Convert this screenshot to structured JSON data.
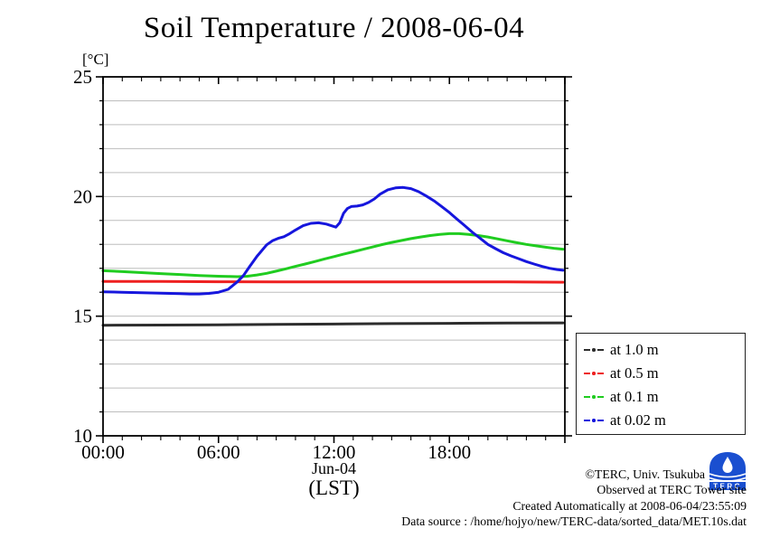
{
  "title": "Soil Temperature / 2008-06-04",
  "y_unit_label": "[°C]",
  "x_sublabels": {
    "date": "Jun-04",
    "tz": "(LST)"
  },
  "chart_data": {
    "type": "line",
    "title": "Soil Temperature / 2008-06-04",
    "xlabel": "Jun-04 (LST)",
    "ylabel": "[°C]",
    "xlim": [
      0,
      24
    ],
    "ylim": [
      10,
      25
    ],
    "grid": "horizontal, 1 degree spacing, light gray",
    "legend_position": "outside lower right",
    "x_ticks": [
      {
        "h": 0,
        "label": "00:00"
      },
      {
        "h": 6,
        "label": "06:00"
      },
      {
        "h": 12,
        "label": "12:00"
      },
      {
        "h": 18,
        "label": "18:00"
      },
      {
        "h": 24,
        "label": ""
      }
    ],
    "x_minor_step_hours": 1,
    "y_ticks": [
      {
        "v": 25,
        "label": "25"
      },
      {
        "v": 20,
        "label": "20"
      },
      {
        "v": 15,
        "label": "15"
      },
      {
        "v": 10,
        "label": "10"
      }
    ],
    "y_minor_step": 1,
    "series": [
      {
        "name": "at 1.0 m",
        "color": "#2d2d2d",
        "points": [
          [
            0,
            14.62
          ],
          [
            3,
            14.63
          ],
          [
            6,
            14.64
          ],
          [
            9,
            14.66
          ],
          [
            12,
            14.67
          ],
          [
            15,
            14.69
          ],
          [
            18,
            14.7
          ],
          [
            21,
            14.71
          ],
          [
            23.9,
            14.72
          ]
        ]
      },
      {
        "name": "at 0.5 m",
        "color": "#ee2020",
        "points": [
          [
            0,
            16.45
          ],
          [
            3,
            16.45
          ],
          [
            6,
            16.44
          ],
          [
            9,
            16.43
          ],
          [
            12,
            16.43
          ],
          [
            15,
            16.43
          ],
          [
            18,
            16.43
          ],
          [
            21,
            16.43
          ],
          [
            23.9,
            16.42
          ]
        ]
      },
      {
        "name": "at 0.1 m",
        "color": "#20cc20",
        "points": [
          [
            0,
            16.9
          ],
          [
            1,
            16.86
          ],
          [
            2,
            16.82
          ],
          [
            3,
            16.78
          ],
          [
            4,
            16.74
          ],
          [
            5,
            16.7
          ],
          [
            6,
            16.67
          ],
          [
            6.5,
            16.66
          ],
          [
            7,
            16.65
          ],
          [
            7.5,
            16.67
          ],
          [
            8,
            16.72
          ],
          [
            8.5,
            16.79
          ],
          [
            9,
            16.88
          ],
          [
            9.5,
            16.98
          ],
          [
            10,
            17.08
          ],
          [
            10.5,
            17.18
          ],
          [
            11,
            17.28
          ],
          [
            11.5,
            17.39
          ],
          [
            12,
            17.49
          ],
          [
            12.5,
            17.59
          ],
          [
            13,
            17.69
          ],
          [
            13.5,
            17.79
          ],
          [
            14,
            17.89
          ],
          [
            14.5,
            17.99
          ],
          [
            15,
            18.08
          ],
          [
            15.5,
            18.16
          ],
          [
            16,
            18.24
          ],
          [
            16.5,
            18.31
          ],
          [
            17,
            18.37
          ],
          [
            17.5,
            18.42
          ],
          [
            18,
            18.45
          ],
          [
            18.5,
            18.45
          ],
          [
            19,
            18.42
          ],
          [
            19.5,
            18.37
          ],
          [
            20,
            18.31
          ],
          [
            20.5,
            18.23
          ],
          [
            21,
            18.15
          ],
          [
            21.5,
            18.07
          ],
          [
            22,
            18.0
          ],
          [
            22.5,
            17.94
          ],
          [
            23,
            17.88
          ],
          [
            23.5,
            17.83
          ],
          [
            23.9,
            17.8
          ]
        ]
      },
      {
        "name": "at 0.02 m",
        "color": "#1616dd",
        "points": [
          [
            0,
            16.02
          ],
          [
            1,
            16.0
          ],
          [
            2,
            15.98
          ],
          [
            3,
            15.96
          ],
          [
            4,
            15.94
          ],
          [
            4.5,
            15.93
          ],
          [
            5,
            15.93
          ],
          [
            5.5,
            15.95
          ],
          [
            6,
            16.0
          ],
          [
            6.5,
            16.12
          ],
          [
            7,
            16.45
          ],
          [
            7.3,
            16.7
          ],
          [
            7.6,
            17.05
          ],
          [
            8,
            17.5
          ],
          [
            8.5,
            17.98
          ],
          [
            8.8,
            18.15
          ],
          [
            9.1,
            18.25
          ],
          [
            9.4,
            18.32
          ],
          [
            9.7,
            18.45
          ],
          [
            10,
            18.6
          ],
          [
            10.4,
            18.78
          ],
          [
            10.8,
            18.88
          ],
          [
            11.2,
            18.9
          ],
          [
            11.6,
            18.85
          ],
          [
            12.1,
            18.72
          ],
          [
            12.3,
            18.9
          ],
          [
            12.5,
            19.3
          ],
          [
            12.7,
            19.5
          ],
          [
            12.9,
            19.58
          ],
          [
            13.2,
            19.6
          ],
          [
            13.5,
            19.65
          ],
          [
            13.8,
            19.75
          ],
          [
            14.1,
            19.9
          ],
          [
            14.4,
            20.1
          ],
          [
            14.8,
            20.28
          ],
          [
            15.2,
            20.36
          ],
          [
            15.6,
            20.38
          ],
          [
            16,
            20.33
          ],
          [
            16.4,
            20.2
          ],
          [
            16.8,
            20.02
          ],
          [
            17.2,
            19.82
          ],
          [
            17.6,
            19.58
          ],
          [
            18,
            19.33
          ],
          [
            18.4,
            19.05
          ],
          [
            18.8,
            18.78
          ],
          [
            19.2,
            18.5
          ],
          [
            19.6,
            18.25
          ],
          [
            20,
            18.0
          ],
          [
            20.4,
            17.82
          ],
          [
            20.8,
            17.65
          ],
          [
            21.2,
            17.52
          ],
          [
            21.6,
            17.4
          ],
          [
            22,
            17.28
          ],
          [
            22.4,
            17.18
          ],
          [
            22.8,
            17.08
          ],
          [
            23.2,
            17.0
          ],
          [
            23.6,
            16.95
          ],
          [
            23.9,
            16.92
          ]
        ]
      }
    ]
  },
  "footer": {
    "line1": "©TERC, Univ. Tsukuba",
    "line2": "Observed at TERC Tower site",
    "line3": "Created Automatically at 2008-06-04/23:55:09",
    "line4": "Data source : /home/hojyo/new/TERC-data/sorted_data/MET.10s.dat"
  },
  "logo": {
    "text": "TERC",
    "color": "#1a4fd0"
  }
}
